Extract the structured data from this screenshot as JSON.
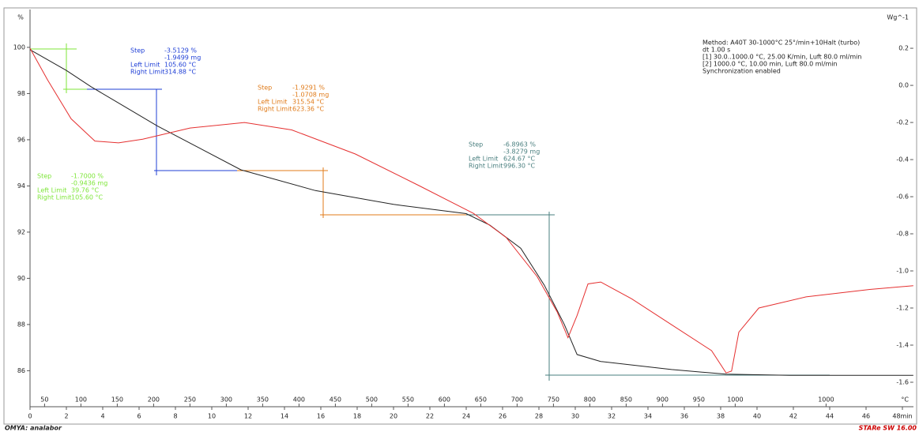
{
  "chart_data": {
    "type": "line",
    "ylabel": "%",
    "y2label": "Wg^-1",
    "x2label": "°C",
    "footer_left": "OMYA: analabor",
    "footer_right": "STARe SW 16.00",
    "xlim": [
      0,
      48.6
    ],
    "xticks": [
      0,
      2,
      4,
      6,
      8,
      10,
      12,
      14,
      16,
      18,
      20,
      22,
      24,
      26,
      28,
      30,
      32,
      34,
      36,
      38,
      40,
      42,
      44,
      46,
      {
        "value": 48,
        "label": "48min"
      }
    ],
    "x2ticks": [
      {
        "value": 0.8,
        "label": "50"
      },
      {
        "value": 2.8,
        "label": "100"
      },
      {
        "value": 4.8,
        "label": "150"
      },
      {
        "value": 6.8,
        "label": "200"
      },
      {
        "value": 8.8,
        "label": "250"
      },
      {
        "value": 10.8,
        "label": "300"
      },
      {
        "value": 12.8,
        "label": "350"
      },
      {
        "value": 14.8,
        "label": "400"
      },
      {
        "value": 16.8,
        "label": "450"
      },
      {
        "value": 18.8,
        "label": "500"
      },
      {
        "value": 20.8,
        "label": "550"
      },
      {
        "value": 22.8,
        "label": "600"
      },
      {
        "value": 24.8,
        "label": "650"
      },
      {
        "value": 26.8,
        "label": "700"
      },
      {
        "value": 28.8,
        "label": "750"
      },
      {
        "value": 30.8,
        "label": "800"
      },
      {
        "value": 32.8,
        "label": "850"
      },
      {
        "value": 34.8,
        "label": "900"
      },
      {
        "value": 36.8,
        "label": "950"
      },
      {
        "value": 38.8,
        "label": "1000"
      },
      {
        "value": 43.8,
        "label": "1000"
      }
    ],
    "ylim": [
      84.44,
      101.64
    ],
    "yticks": [
      86,
      88,
      90,
      92,
      94,
      96,
      98,
      100
    ],
    "y2lim": [
      -1.732,
      0.409
    ],
    "y2ticks": [
      {
        "value": 0.2,
        "label": "0.2"
      },
      {
        "value": 0,
        "label": "0.0"
      },
      -0.2,
      -0.4,
      -0.6,
      -0.8,
      {
        "value": -1,
        "label": "-1.0"
      },
      -1.2,
      -1.4,
      -1.6
    ],
    "series": [
      {
        "color": "#222222",
        "axis": "y",
        "x": [
          0,
          2,
          3.35,
          7,
          11.6,
          15.7,
          20,
          24,
          25.3,
          27,
          28.3,
          29.4,
          30.1,
          31.4,
          35.3,
          38.3,
          41.8,
          48.6
        ],
        "values": [
          99.9,
          99.0,
          98.3,
          96.6,
          94.7,
          93.8,
          93.2,
          92.8,
          92.3,
          91.3,
          89.7,
          88.0,
          86.7,
          86.4,
          86.05,
          85.85,
          85.8,
          85.8
        ]
      },
      {
        "color": "#e53030",
        "axis": "y2",
        "x": [
          0,
          0.96,
          2.26,
          3.57,
          4.87,
          6.2,
          8.8,
          11.8,
          14.4,
          17.9,
          21.4,
          24.4,
          26.2,
          27.9,
          29.0,
          29.6,
          30.1,
          30.7,
          31.4,
          33.1,
          35.3,
          37.5,
          38.3,
          38.6,
          39.0,
          40.1,
          42.7,
          46.2,
          48.6
        ],
        "values": [
          0.2,
          0.03,
          -0.18,
          -0.3,
          -0.31,
          -0.29,
          -0.23,
          -0.2,
          -0.24,
          -0.37,
          -0.54,
          -0.69,
          -0.82,
          -1.03,
          -1.22,
          -1.36,
          -1.24,
          -1.07,
          -1.06,
          -1.15,
          -1.29,
          -1.43,
          -1.55,
          -1.54,
          -1.33,
          -1.2,
          -1.14,
          -1.1,
          -1.08
        ]
      }
    ],
    "annotations": [
      {
        "color": "#1f3fd6",
        "rows": [
          {
            "label": "Step",
            "value": "-3.5129 %"
          },
          {
            "value": "-1.9499 mg"
          },
          {
            "label": "Left Limit",
            "value": "105.60 °C"
          },
          {
            "label": "Right Limit",
            "value": "314.88 °C"
          }
        ]
      },
      {
        "color": "#e07b1a",
        "rows": [
          {
            "label": "Step",
            "value": "-1.9291 %"
          },
          {
            "value": "-1.0708 mg"
          },
          {
            "label": "Left Limit",
            "value": "315.54 °C"
          },
          {
            "label": "Right Limit",
            "value": "623.36 °C"
          }
        ]
      },
      {
        "color": "#4a7f7f",
        "rows": [
          {
            "label": "Step",
            "value": "-6.8963 %"
          },
          {
            "value": "-3.8279 mg"
          },
          {
            "label": "Left Limit",
            "value": "624.67 °C"
          },
          {
            "label": "Right Limit",
            "value": "996.30 °C"
          }
        ]
      },
      {
        "color": "#7fe63a",
        "rows": [
          {
            "label": "Step",
            "value": "-1.7000 %"
          },
          {
            "value": "-0.9436 mg"
          },
          {
            "label": "Left Limit",
            "value": "39.76 °C"
          },
          {
            "label": "Right Limit",
            "value": "105.60 °C"
          }
        ]
      }
    ],
    "method": [
      "Method: A40T 30-1000°C 25°/min+10Halt (turbo)",
      "dt 1.00 s",
      "[1] 30.0..1000.0 °C, 25.00 K/min,  Luft 80.0 ml/min",
      "[2] 1000.0 °C, 10.00 min,          Luft 80.0 ml/min",
      "Synchronization enabled"
    ]
  }
}
